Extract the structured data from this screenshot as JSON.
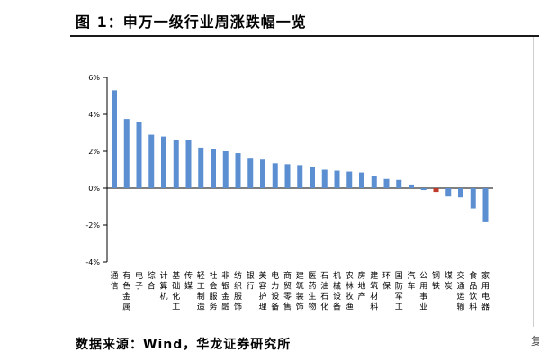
{
  "figure": {
    "title": "图 1：申万一级行业周涨跌幅一览",
    "source": "数据来源：Wind，华龙证券研究所",
    "corner_char": "复"
  },
  "colors": {
    "positive": "#5b8fd1",
    "negative": "#c0392b",
    "axis": "#000000"
  },
  "chart_data": {
    "type": "bar",
    "title": "",
    "xlabel": "",
    "ylabel": "",
    "ylim": [
      -4,
      6
    ],
    "yticks": [
      -4,
      -2,
      0,
      2,
      4,
      6
    ],
    "ytick_labels": [
      "-4%",
      "-2%",
      "0%",
      "2%",
      "4%",
      "6%"
    ],
    "grid": false,
    "legend": "none",
    "categories": [
      "通信",
      "有色金属",
      "电子",
      "综合",
      "计算机",
      "基础化工",
      "传媒",
      "轻工制造",
      "社会服务",
      "非银金融",
      "纺织服饰",
      "银行",
      "美容护理",
      "电力设备",
      "商贸零售",
      "建筑装饰",
      "医药生物",
      "石油石化",
      "机械设备",
      "农林牧渔",
      "房地产",
      "建筑材料",
      "环保",
      "国防军工",
      "汽车",
      "公用事业",
      "钢铁",
      "煤炭",
      "交通运输",
      "食品饮料",
      "家用电器"
    ],
    "values": [
      5.3,
      3.75,
      3.6,
      2.9,
      2.8,
      2.6,
      2.6,
      2.2,
      2.1,
      2.0,
      1.9,
      1.6,
      1.55,
      1.35,
      1.3,
      1.25,
      1.15,
      1.0,
      0.95,
      0.9,
      0.85,
      0.65,
      0.5,
      0.45,
      0.2,
      -0.1,
      -0.2,
      -0.45,
      -0.5,
      -1.1,
      -1.8
    ]
  }
}
